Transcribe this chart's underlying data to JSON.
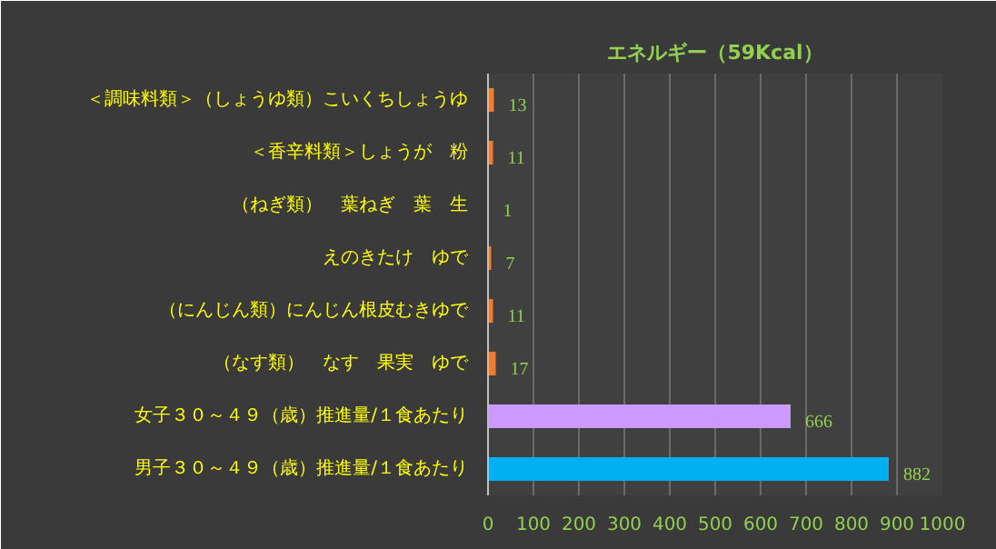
{
  "chart_data": {
    "type": "bar",
    "orientation": "horizontal",
    "title": "エネルギー（59Kcal）",
    "categories": [
      "＜調味料類＞（しょうゆ類）こいくちしょうゆ",
      "＜香辛料類＞しょうが　粉",
      "（ねぎ類）　葉ねぎ　葉　生",
      "えのきたけ　ゆで",
      "（にんじん類）にんじん根皮むきゆで",
      "（なす類）　なす　果実　ゆで",
      "女子３０～４９（歳）推進量/１食あたり",
      "男子３０～４９（歳）推進量/１食あたり"
    ],
    "values": [
      13,
      11,
      1,
      7,
      11,
      17,
      666,
      882
    ],
    "colors": [
      "#ed7d31",
      "#ed7d31",
      "#ed7d31",
      "#ed7d31",
      "#ed7d31",
      "#ed7d31",
      "#cc99ff",
      "#00b0f0"
    ],
    "xlim": [
      0,
      1000
    ],
    "xticks": [
      0,
      100,
      200,
      300,
      400,
      500,
      600,
      700,
      800,
      900,
      1000
    ],
    "grid": "x",
    "data_labels": true
  }
}
